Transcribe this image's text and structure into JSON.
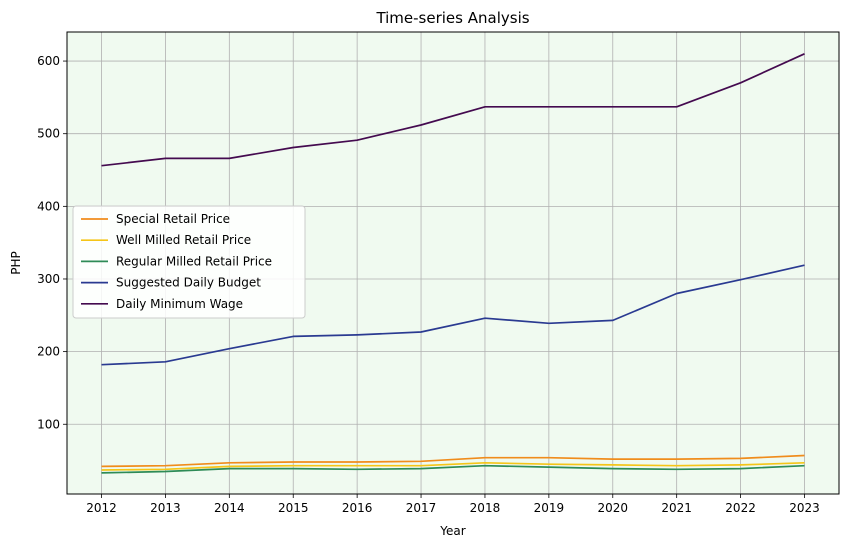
{
  "chart_data": {
    "type": "line",
    "title": "Time-series Analysis",
    "xlabel": "Year",
    "ylabel": "PHP",
    "x": [
      "2012",
      "2013",
      "2014",
      "2015",
      "2016",
      "2017",
      "2018",
      "2019",
      "2020",
      "2021",
      "2022",
      "2023"
    ],
    "xlim": [
      2011.46,
      2023.54
    ],
    "ylim": [
      4,
      640
    ],
    "yticks": [
      100,
      200,
      300,
      400,
      500,
      600
    ],
    "grid": true,
    "plot_background": "#f0faf0",
    "grid_color": "#b0b0b0",
    "legend_position": "center-left",
    "series": [
      {
        "name": "Special Retail Price",
        "color": "#f08c1c",
        "values": [
          42,
          43,
          47,
          48,
          48,
          49,
          54,
          54,
          52,
          52,
          53,
          57
        ]
      },
      {
        "name": "Well Milled Retail Price",
        "color": "#f5c518",
        "values": [
          37,
          38,
          42,
          43,
          43,
          43,
          47,
          45,
          44,
          43,
          44,
          47
        ]
      },
      {
        "name": "Regular Milled Retail Price",
        "color": "#2e8b57",
        "values": [
          33,
          35,
          39,
          39,
          38,
          39,
          43,
          41,
          39,
          38,
          39,
          43
        ]
      },
      {
        "name": "Suggested Daily Budget",
        "color": "#2a3a91",
        "values": [
          182,
          186,
          204,
          221,
          223,
          227,
          246,
          239,
          243,
          280,
          299,
          319
        ]
      },
      {
        "name": "Daily Minimum Wage",
        "color": "#440a4f",
        "values": [
          456,
          466,
          466,
          481,
          491,
          512,
          537,
          537,
          537,
          537,
          570,
          610
        ]
      }
    ]
  }
}
